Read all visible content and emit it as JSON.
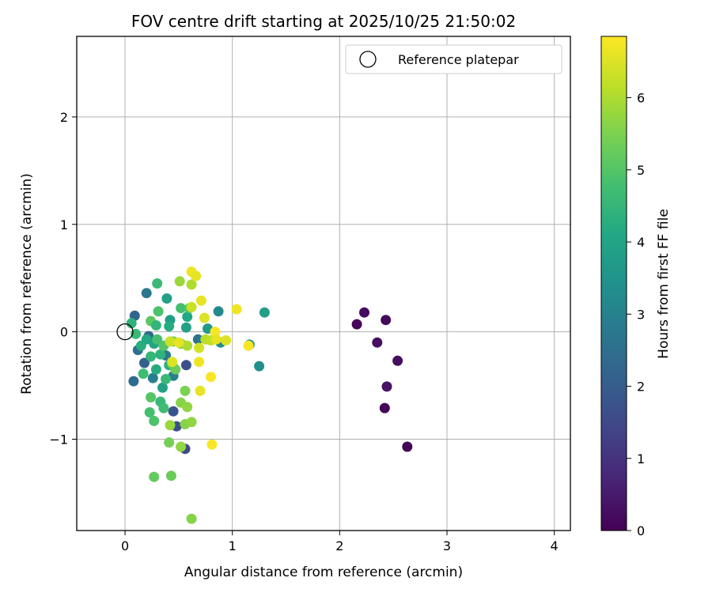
{
  "chart_data": {
    "type": "scatter",
    "title": "FOV centre drift starting at 2025/10/25 21:50:02",
    "xlabel": "Angular distance from reference (arcmin)",
    "ylabel": "Rotation from reference (arcmin)",
    "xlim": [
      -0.45,
      4.15
    ],
    "ylim": [
      -1.85,
      2.75
    ],
    "xticks": [
      0,
      1,
      2,
      3,
      4
    ],
    "xtick_labels": [
      "0",
      "1",
      "2",
      "3",
      "4"
    ],
    "yticks": [
      -1,
      0,
      1,
      2
    ],
    "ytick_labels": [
      "−1",
      "0",
      "1",
      "2"
    ],
    "grid": true,
    "legend": {
      "label": "Reference platepar",
      "location": "top-right"
    },
    "reference_point": {
      "x": 0,
      "y": 0
    },
    "colorbar": {
      "label": "Hours from first FF file",
      "range": [
        0,
        6.85
      ],
      "ticks": [
        0,
        1,
        2,
        3,
        4,
        5,
        6
      ],
      "colormap": "viridis"
    },
    "points": [
      {
        "x": 2.16,
        "y": 0.07,
        "h": 0.1
      },
      {
        "x": 2.23,
        "y": 0.18,
        "h": 0.2
      },
      {
        "x": 2.43,
        "y": 0.11,
        "h": 0.15
      },
      {
        "x": 2.35,
        "y": -0.1,
        "h": 0.3
      },
      {
        "x": 2.54,
        "y": -0.27,
        "h": 0.25
      },
      {
        "x": 2.44,
        "y": -0.51,
        "h": 0.35
      },
      {
        "x": 2.42,
        "y": -0.71,
        "h": 0.1
      },
      {
        "x": 2.63,
        "y": -1.07,
        "h": 0.05
      },
      {
        "x": 0.08,
        "y": -0.46,
        "h": 2.4
      },
      {
        "x": 0.09,
        "y": 0.15,
        "h": 2.2
      },
      {
        "x": 0.2,
        "y": 0.36,
        "h": 2.7
      },
      {
        "x": 0.12,
        "y": -0.17,
        "h": 2.5
      },
      {
        "x": 0.18,
        "y": -0.29,
        "h": 2.1
      },
      {
        "x": 0.26,
        "y": -0.43,
        "h": 2.9
      },
      {
        "x": 0.45,
        "y": -0.74,
        "h": 1.8
      },
      {
        "x": 0.48,
        "y": -0.88,
        "h": 1.6
      },
      {
        "x": 0.56,
        "y": -1.09,
        "h": 1.5
      },
      {
        "x": 0.57,
        "y": -0.31,
        "h": 1.7
      },
      {
        "x": 0.68,
        "y": -0.07,
        "h": 2.6
      },
      {
        "x": 0.22,
        "y": -0.04,
        "h": 2.3
      },
      {
        "x": 0.38,
        "y": -0.22,
        "h": 2.8
      },
      {
        "x": 0.45,
        "y": -0.41,
        "h": 2.9
      },
      {
        "x": 0.3,
        "y": 0.45,
        "h": 4.6
      },
      {
        "x": 0.39,
        "y": 0.31,
        "h": 3.9
      },
      {
        "x": 0.31,
        "y": 0.19,
        "h": 4.9
      },
      {
        "x": 0.42,
        "y": 0.11,
        "h": 3.8
      },
      {
        "x": 0.41,
        "y": 0.05,
        "h": 4.2
      },
      {
        "x": 0.52,
        "y": 0.22,
        "h": 4.8
      },
      {
        "x": 0.58,
        "y": 0.14,
        "h": 4.1
      },
      {
        "x": 0.57,
        "y": 0.04,
        "h": 3.9
      },
      {
        "x": 0.6,
        "y": 0.22,
        "h": 5.0
      },
      {
        "x": 0.77,
        "y": 0.03,
        "h": 3.7
      },
      {
        "x": 0.87,
        "y": 0.19,
        "h": 3.2
      },
      {
        "x": 0.89,
        "y": -0.1,
        "h": 3.3
      },
      {
        "x": 1.16,
        "y": -0.12,
        "h": 3.6
      },
      {
        "x": 1.25,
        "y": -0.32,
        "h": 3.4
      },
      {
        "x": 1.3,
        "y": 0.18,
        "h": 3.8
      },
      {
        "x": 0.06,
        "y": 0.08,
        "h": 4.4
      },
      {
        "x": 0.1,
        "y": -0.02,
        "h": 4.6
      },
      {
        "x": 0.15,
        "y": -0.13,
        "h": 4.3
      },
      {
        "x": 0.17,
        "y": -0.39,
        "h": 4.7
      },
      {
        "x": 0.2,
        "y": -0.07,
        "h": 4.1
      },
      {
        "x": 0.24,
        "y": -0.23,
        "h": 4.5
      },
      {
        "x": 0.27,
        "y": -0.11,
        "h": 4.0
      },
      {
        "x": 0.29,
        "y": -0.35,
        "h": 4.2
      },
      {
        "x": 0.33,
        "y": -0.21,
        "h": 4.4
      },
      {
        "x": 0.35,
        "y": -0.52,
        "h": 3.9
      },
      {
        "x": 0.38,
        "y": -0.44,
        "h": 4.6
      },
      {
        "x": 0.3,
        "y": -0.07,
        "h": 4.8
      },
      {
        "x": 0.36,
        "y": -0.13,
        "h": 5.0
      },
      {
        "x": 0.41,
        "y": -0.31,
        "h": 4.3
      },
      {
        "x": 0.44,
        "y": -0.3,
        "h": 5.2
      },
      {
        "x": 0.47,
        "y": -0.35,
        "h": 5.3
      },
      {
        "x": 0.24,
        "y": -0.61,
        "h": 5.0
      },
      {
        "x": 0.23,
        "y": -0.75,
        "h": 4.8
      },
      {
        "x": 0.27,
        "y": -0.83,
        "h": 4.9
      },
      {
        "x": 0.33,
        "y": -0.65,
        "h": 4.6
      },
      {
        "x": 0.36,
        "y": -0.71,
        "h": 4.7
      },
      {
        "x": 0.24,
        "y": 0.1,
        "h": 5.1
      },
      {
        "x": 0.29,
        "y": 0.06,
        "h": 4.5
      },
      {
        "x": 0.45,
        "y": -0.09,
        "h": 5.4
      },
      {
        "x": 0.52,
        "y": -0.11,
        "h": 5.5
      },
      {
        "x": 0.56,
        "y": -0.55,
        "h": 5.5
      },
      {
        "x": 0.52,
        "y": -0.66,
        "h": 5.6
      },
      {
        "x": 0.58,
        "y": -0.7,
        "h": 5.7
      },
      {
        "x": 0.42,
        "y": -0.87,
        "h": 5.8
      },
      {
        "x": 0.56,
        "y": -0.86,
        "h": 5.6
      },
      {
        "x": 0.62,
        "y": -0.84,
        "h": 5.7
      },
      {
        "x": 0.41,
        "y": -1.03,
        "h": 5.4
      },
      {
        "x": 0.52,
        "y": -1.07,
        "h": 5.7
      },
      {
        "x": 0.27,
        "y": -1.35,
        "h": 5.2
      },
      {
        "x": 0.43,
        "y": -1.34,
        "h": 5.3
      },
      {
        "x": 0.62,
        "y": -1.74,
        "h": 5.6
      },
      {
        "x": 0.51,
        "y": 0.47,
        "h": 5.8
      },
      {
        "x": 0.62,
        "y": 0.44,
        "h": 6.0
      },
      {
        "x": 0.62,
        "y": 0.56,
        "h": 6.7
      },
      {
        "x": 0.66,
        "y": 0.52,
        "h": 6.6
      },
      {
        "x": 0.71,
        "y": 0.29,
        "h": 6.6
      },
      {
        "x": 0.74,
        "y": 0.13,
        "h": 6.5
      },
      {
        "x": 0.62,
        "y": 0.23,
        "h": 6.3
      },
      {
        "x": 0.58,
        "y": -0.13,
        "h": 6.0
      },
      {
        "x": 0.69,
        "y": -0.15,
        "h": 6.4
      },
      {
        "x": 0.75,
        "y": -0.07,
        "h": 6.1
      },
      {
        "x": 0.8,
        "y": -0.08,
        "h": 6.2
      },
      {
        "x": 0.84,
        "y": 0.0,
        "h": 6.8
      },
      {
        "x": 0.85,
        "y": -0.07,
        "h": 6.6
      },
      {
        "x": 0.94,
        "y": -0.08,
        "h": 6.5
      },
      {
        "x": 1.04,
        "y": 0.21,
        "h": 6.7
      },
      {
        "x": 1.15,
        "y": -0.13,
        "h": 6.8
      },
      {
        "x": 0.69,
        "y": -0.28,
        "h": 6.7
      },
      {
        "x": 0.8,
        "y": -0.42,
        "h": 6.8
      },
      {
        "x": 0.7,
        "y": -0.55,
        "h": 6.6
      },
      {
        "x": 0.81,
        "y": -1.05,
        "h": 6.8
      },
      {
        "x": 0.44,
        "y": -0.28,
        "h": 6.5
      },
      {
        "x": 0.42,
        "y": -0.09,
        "h": 6.3
      },
      {
        "x": 0.5,
        "y": -0.1,
        "h": 6.6
      }
    ]
  }
}
